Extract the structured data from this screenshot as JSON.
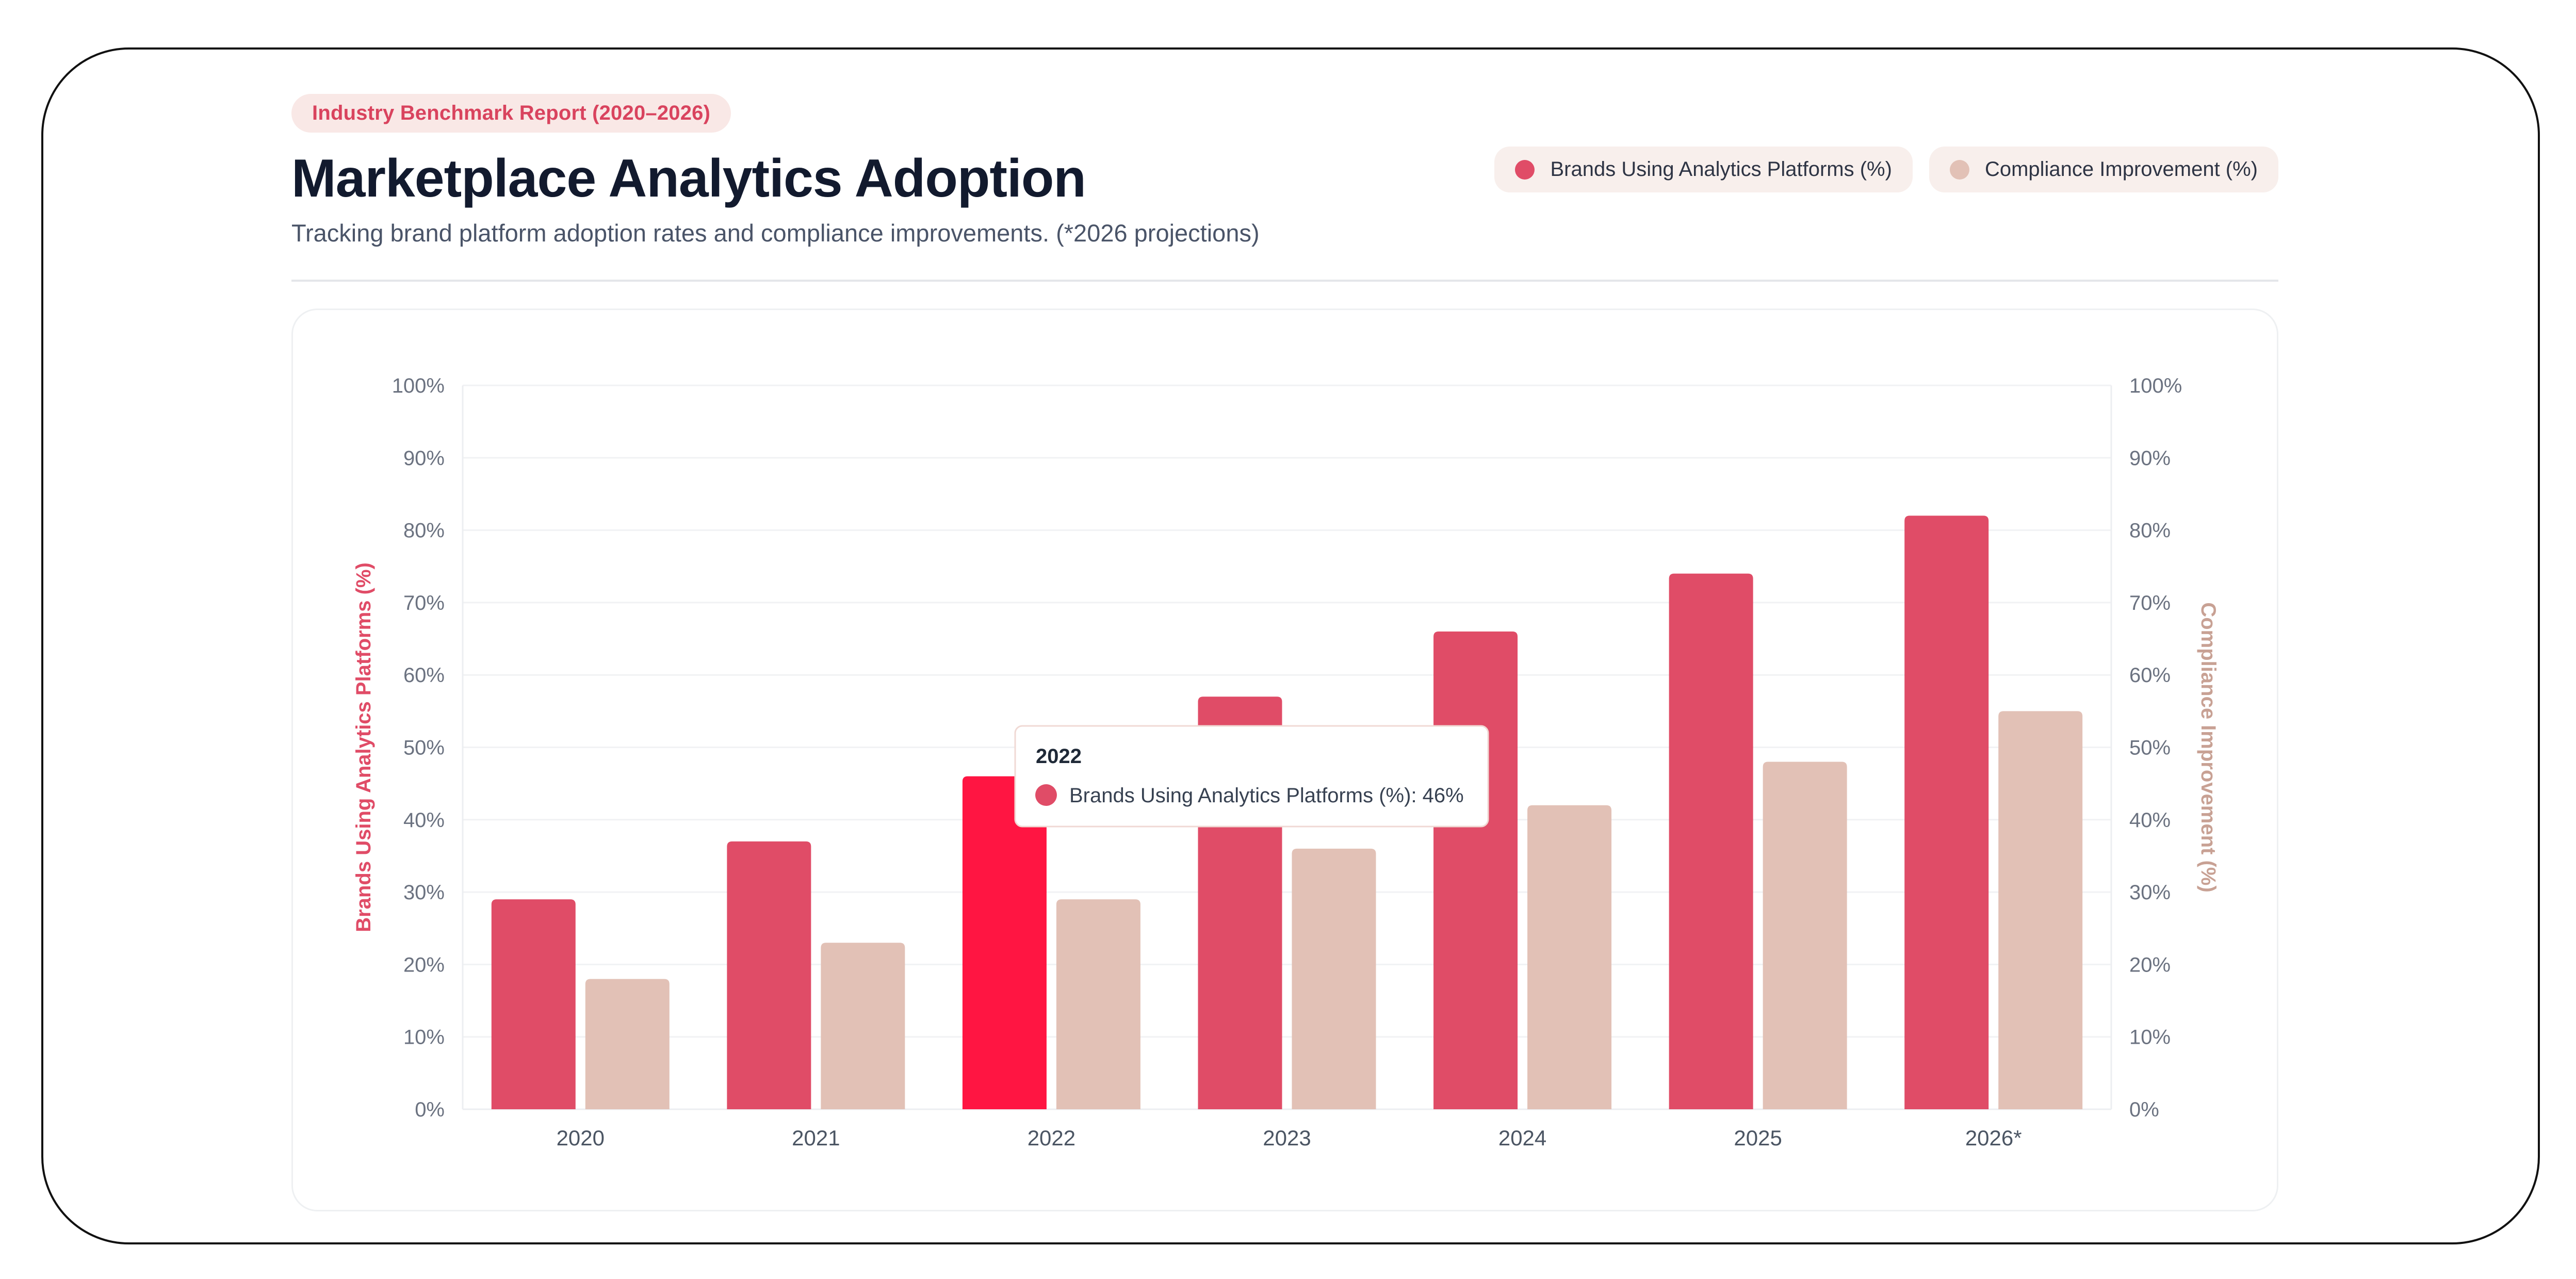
{
  "header": {
    "badge": "Industry Benchmark Report (2020–2026)",
    "title": "Marketplace Analytics Adoption",
    "subtitle": "Tracking brand platform adoption rates and compliance improvements. (*2026 projections)"
  },
  "legend": {
    "items": [
      {
        "label": "Brands Using Analytics Platforms (%)",
        "color": "#e04c67"
      },
      {
        "label": "Compliance Improvement (%)",
        "color": "#e2c1b6"
      }
    ]
  },
  "chart_data": {
    "type": "bar",
    "categories": [
      "2020",
      "2021",
      "2022",
      "2023",
      "2024",
      "2025",
      "2026*"
    ],
    "series": [
      {
        "name": "Brands Using Analytics Platforms (%)",
        "values": [
          29,
          37,
          46,
          57,
          66,
          74,
          82
        ],
        "color": "#e04c67",
        "highlight_color": "#ff1542",
        "axis": "left"
      },
      {
        "name": "Compliance Improvement (%)",
        "values": [
          18,
          23,
          29,
          36,
          42,
          48,
          55
        ],
        "color": "#e2c1b6",
        "axis": "right"
      }
    ],
    "ylabel_left": "Brands Using Analytics Platforms (%)",
    "ylabel_right": "Compliance Improvement (%)",
    "ylim": [
      0,
      100
    ],
    "ytick_values": [
      0,
      10,
      20,
      30,
      40,
      50,
      60,
      70,
      80,
      90,
      100
    ],
    "ytick_suffix": "%",
    "grid": true,
    "legend_placement": "top-right",
    "tooltip": {
      "category": "2022",
      "series_label": "Brands Using Analytics Platforms (%)",
      "value_text": "46%"
    }
  }
}
